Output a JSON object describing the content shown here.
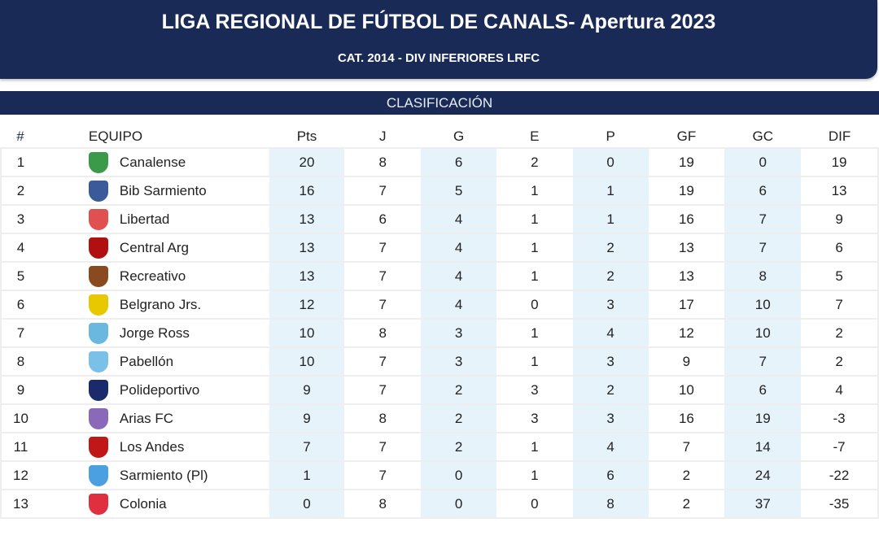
{
  "header": {
    "title": "LIGA REGIONAL DE FÚTBOL DE CANALS- Apertura 2023",
    "subtitle": "CAT. 2014 - DIV INFERIORES LRFC"
  },
  "section": "CLASIFICACIÓN",
  "columns": [
    "#",
    "EQUIPO",
    "Pts",
    "J",
    "G",
    "E",
    "P",
    "GF",
    "GC",
    "DIF"
  ],
  "rows": [
    {
      "pos": "1",
      "team": "Canalense",
      "logo_color": "#3a9a4a",
      "pts": "20",
      "j": "8",
      "g": "6",
      "e": "2",
      "p": "0",
      "gf": "19",
      "gc": "0",
      "dif": "19"
    },
    {
      "pos": "2",
      "team": "Bib Sarmiento",
      "logo_color": "#3b5a9a",
      "pts": "16",
      "j": "7",
      "g": "5",
      "e": "1",
      "p": "1",
      "gf": "19",
      "gc": "6",
      "dif": "13"
    },
    {
      "pos": "3",
      "team": "Libertad",
      "logo_color": "#e05050",
      "pts": "13",
      "j": "6",
      "g": "4",
      "e": "1",
      "p": "1",
      "gf": "16",
      "gc": "7",
      "dif": "9"
    },
    {
      "pos": "4",
      "team": "Central Arg",
      "logo_color": "#b01010",
      "pts": "13",
      "j": "7",
      "g": "4",
      "e": "1",
      "p": "2",
      "gf": "13",
      "gc": "7",
      "dif": "6"
    },
    {
      "pos": "5",
      "team": "Recreativo",
      "logo_color": "#8a4a20",
      "pts": "13",
      "j": "7",
      "g": "4",
      "e": "1",
      "p": "2",
      "gf": "13",
      "gc": "8",
      "dif": "5"
    },
    {
      "pos": "6",
      "team": "Belgrano Jrs.",
      "logo_color": "#e8c800",
      "pts": "12",
      "j": "7",
      "g": "4",
      "e": "0",
      "p": "3",
      "gf": "17",
      "gc": "10",
      "dif": "7"
    },
    {
      "pos": "7",
      "team": "Jorge Ross",
      "logo_color": "#6ab8e0",
      "pts": "10",
      "j": "8",
      "g": "3",
      "e": "1",
      "p": "4",
      "gf": "12",
      "gc": "10",
      "dif": "2"
    },
    {
      "pos": "8",
      "team": "Pabellón",
      "logo_color": "#7ac0e8",
      "pts": "10",
      "j": "7",
      "g": "3",
      "e": "1",
      "p": "3",
      "gf": "9",
      "gc": "7",
      "dif": "2"
    },
    {
      "pos": "9",
      "team": "Polideportivo",
      "logo_color": "#1a2a6a",
      "pts": "9",
      "j": "7",
      "g": "2",
      "e": "3",
      "p": "2",
      "gf": "10",
      "gc": "6",
      "dif": "4"
    },
    {
      "pos": "10",
      "team": "Arias FC",
      "logo_color": "#8a6ab8",
      "pts": "9",
      "j": "8",
      "g": "2",
      "e": "3",
      "p": "3",
      "gf": "16",
      "gc": "19",
      "dif": "-3"
    },
    {
      "pos": "11",
      "team": "Los Andes",
      "logo_color": "#c01818",
      "pts": "7",
      "j": "7",
      "g": "2",
      "e": "1",
      "p": "4",
      "gf": "7",
      "gc": "14",
      "dif": "-7"
    },
    {
      "pos": "12",
      "team": "Sarmiento (Pl)",
      "logo_color": "#4aa0e0",
      "pts": "1",
      "j": "7",
      "g": "0",
      "e": "1",
      "p": "6",
      "gf": "2",
      "gc": "24",
      "dif": "-22"
    },
    {
      "pos": "13",
      "team": "Colonia",
      "logo_color": "#e03040",
      "pts": "0",
      "j": "8",
      "g": "0",
      "e": "0",
      "p": "8",
      "gf": "2",
      "gc": "37",
      "dif": "-35"
    }
  ]
}
